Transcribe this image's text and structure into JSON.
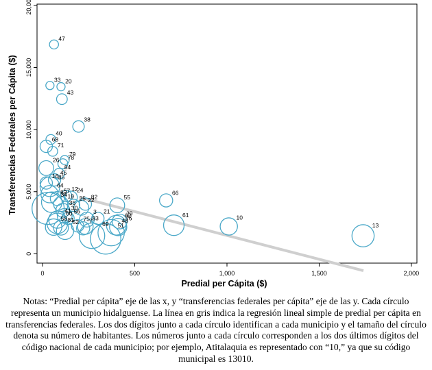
{
  "chart_data": {
    "type": "scatter",
    "xlabel": "Predial per Cápita ($)",
    "ylabel": "Transferencias Federales per Cápita ($)",
    "xlim": [
      -30,
      2030
    ],
    "ylim": [
      -750,
      20100
    ],
    "xticks": [
      0,
      500,
      1000,
      1500,
      2000
    ],
    "xtick_labels": [
      "0",
      "500",
      "1,000",
      "1,500",
      "2,000"
    ],
    "yticks": [
      0,
      5000,
      10000,
      15000,
      20000
    ],
    "ytick_labels": [
      "0",
      "5,000",
      "10,000",
      "15,000",
      "20,000"
    ],
    "grid": false,
    "legend": "none",
    "regression_line": {
      "x": [
        200,
        1740
      ],
      "y": [
        4550,
        -1360
      ]
    },
    "colors": {
      "marker": "#4aa8c8",
      "regression": "#cfcfcf",
      "frame": "#000000"
    },
    "points": [
      {
        "label": "47",
        "x": 62,
        "y": 16850,
        "s": 0.6
      },
      {
        "label": "33",
        "x": 40,
        "y": 13550,
        "s": 0.5
      },
      {
        "label": "20",
        "x": 100,
        "y": 13450,
        "s": 0.5
      },
      {
        "label": "43",
        "x": 105,
        "y": 12450,
        "s": 0.8
      },
      {
        "label": "38",
        "x": 195,
        "y": 10250,
        "s": 0.9
      },
      {
        "label": "40",
        "x": 45,
        "y": 9200,
        "s": 0.7
      },
      {
        "label": "68",
        "x": 20,
        "y": 8650,
        "s": 1.0
      },
      {
        "label": "71",
        "x": 55,
        "y": 8250,
        "s": 0.7
      },
      {
        "label": "79",
        "x": 120,
        "y": 7550,
        "s": 0.6
      },
      {
        "label": "78",
        "x": 110,
        "y": 7250,
        "s": 0.7
      },
      {
        "label": "26",
        "x": 20,
        "y": 6900,
        "s": 1.3
      },
      {
        "label": "84",
        "x": 90,
        "y": 6450,
        "s": 0.8
      },
      {
        "label": "55",
        "x": 405,
        "y": 3900,
        "s": 1.3
      },
      {
        "label": "66",
        "x": 670,
        "y": 4300,
        "s": 1.1
      },
      {
        "label": "61",
        "x": 712,
        "y": 2300,
        "s": 2.0
      },
      {
        "label": "10",
        "x": 1010,
        "y": 2200,
        "s": 1.6
      },
      {
        "label": "13",
        "x": 1738,
        "y": 1450,
        "s": 2.2
      },
      {
        "label": "21",
        "x": 300,
        "y": 2850,
        "s": 1.0
      },
      {
        "label": "29",
        "x": 418,
        "y": 2600,
        "s": 1.3
      },
      {
        "label": "62",
        "x": 400,
        "y": 2300,
        "s": 1.9
      },
      {
        "label": "76",
        "x": 410,
        "y": 2150,
        "s": 1.6
      },
      {
        "label": "48",
        "x": 372,
        "y": 1700,
        "s": 2.7
      },
      {
        "label": "51",
        "x": 342,
        "y": 1200,
        "s": 3.2
      },
      {
        "label": "69",
        "x": 268,
        "y": 1450,
        "s": 2.6
      },
      {
        "label": "3",
        "x": 240,
        "y": 2750,
        "s": 1.3
      },
      {
        "label": "83",
        "x": 232,
        "y": 2200,
        "s": 1.4
      },
      {
        "label": "7",
        "x": 220,
        "y": 2050,
        "s": 1.1
      },
      {
        "label": "75",
        "x": 190,
        "y": 2250,
        "s": 1.0
      },
      {
        "label": "52",
        "x": 122,
        "y": 1850,
        "s": 1.6
      },
      {
        "label": "56",
        "x": 138,
        "y": 2850,
        "s": 1.0
      },
      {
        "label": "22",
        "x": 210,
        "y": 3700,
        "s": 1.3
      },
      {
        "label": "82",
        "x": 232,
        "y": 4000,
        "s": 1.0
      },
      {
        "label": "24",
        "x": 155,
        "y": 4550,
        "s": 1.0
      },
      {
        "label": "12",
        "x": 128,
        "y": 4650,
        "s": 0.9
      },
      {
        "label": "25",
        "x": 168,
        "y": 3900,
        "s": 1.0
      },
      {
        "label": "35",
        "x": 110,
        "y": 3500,
        "s": 1.2
      },
      {
        "label": "30",
        "x": 120,
        "y": 3050,
        "s": 1.3
      },
      {
        "label": "41",
        "x": 80,
        "y": 2750,
        "s": 1.6
      },
      {
        "label": "85",
        "x": 40,
        "y": 5400,
        "s": 1.9
      },
      {
        "label": "64",
        "x": 38,
        "y": 4800,
        "s": 1.6
      },
      {
        "label": "57",
        "x": 80,
        "y": 4450,
        "s": 1.2
      },
      {
        "label": "82",
        "x": 50,
        "y": 4150,
        "s": 2.0
      },
      {
        "label": "34",
        "x": 30,
        "y": 3650,
        "s": 3.4
      },
      {
        "label": "19",
        "x": 100,
        "y": 4000,
        "s": 1.3
      },
      {
        "label": "60",
        "x": 80,
        "y": 2450,
        "s": 2.0
      },
      {
        "label": "58",
        "x": 60,
        "y": 2150,
        "s": 1.5
      },
      {
        "label": "81",
        "x": 100,
        "y": 2100,
        "s": 1.3
      },
      {
        "label": "45",
        "x": 65,
        "y": 5950,
        "s": 1.0
      },
      {
        "label": "16",
        "x": 20,
        "y": 5700,
        "s": 1.0
      }
    ]
  }
}
